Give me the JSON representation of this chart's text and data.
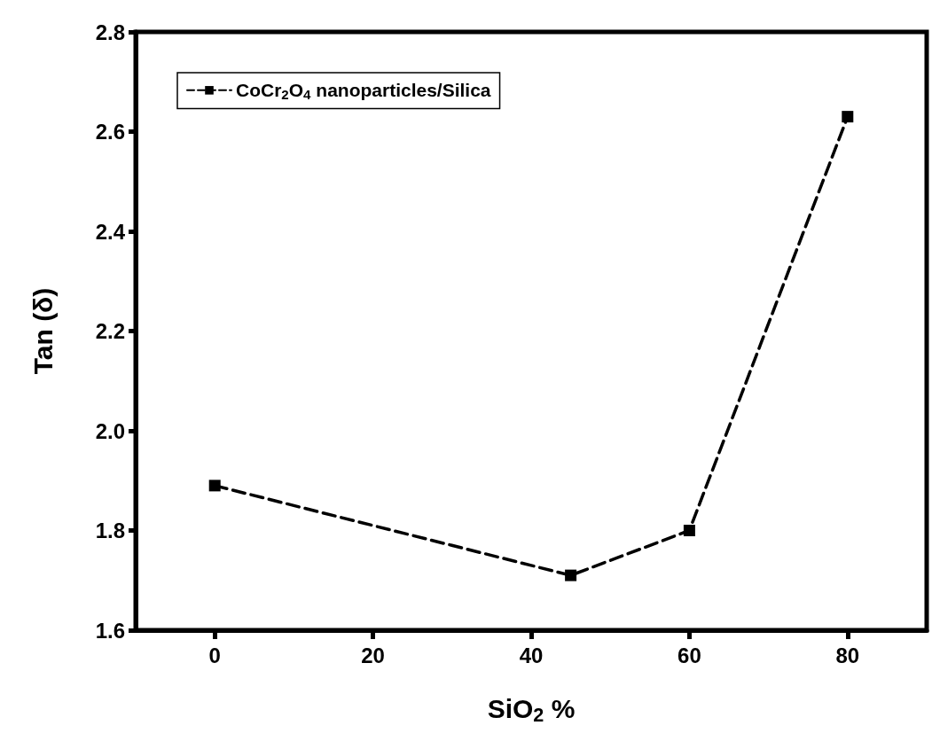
{
  "chart_data": {
    "type": "line",
    "xlabel": "SiO$_{2}$ %",
    "ylabel": "Tan (δ)",
    "x": [
      0,
      45,
      60,
      80
    ],
    "series": [
      {
        "name": "CoCr$_{2}$O$_{4}$ nanoparticles/Silica",
        "color": "#000000",
        "values": [
          1.89,
          1.71,
          1.8,
          2.63
        ]
      }
    ],
    "xlim": [
      -10,
      90
    ],
    "xticks": [
      0,
      20,
      40,
      60,
      80
    ],
    "ylim": [
      1.6,
      2.8
    ],
    "yticks": [
      1.6,
      1.8,
      {
        "value": 2,
        "label": "2.0"
      },
      2.2,
      2.4,
      2.6,
      2.8
    ],
    "grid": false,
    "legend": "top left",
    "marker": "square",
    "line_style": "dashed"
  }
}
